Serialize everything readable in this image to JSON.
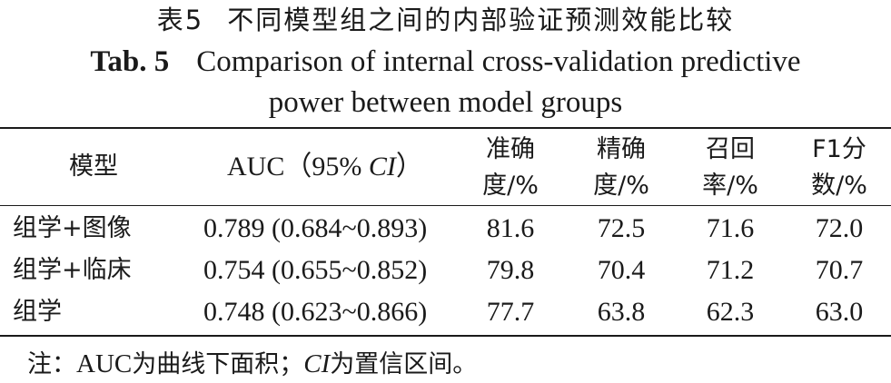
{
  "caption": {
    "cn_number": "表5",
    "cn_title": "不同模型组之间的内部验证预测效能比较",
    "en_number": "Tab. 5",
    "en_line1": "Comparison of internal cross-validation predictive",
    "en_line2": "power between model groups"
  },
  "headers": {
    "model": "模型",
    "auc_prefix": "AUC（95% ",
    "auc_ci": "CI",
    "auc_suffix": "）",
    "accuracy_l1": "准确",
    "accuracy_l2": "度/%",
    "precision_l1": "精确",
    "precision_l2": "度/%",
    "recall_l1": "召回",
    "recall_l2": "率/%",
    "f1_l1": "F1分",
    "f1_l2": "数/%"
  },
  "rows": [
    {
      "model": "组学+图像",
      "auc": "0.789 (0.684~0.893)",
      "accuracy": "81.6",
      "precision": "72.5",
      "recall": "71.6",
      "f1": "72.0"
    },
    {
      "model": "组学+临床",
      "auc": "0.754 (0.655~0.852)",
      "accuracy": "79.8",
      "precision": "70.4",
      "recall": "71.2",
      "f1": "70.7"
    },
    {
      "model": "组学",
      "auc": "0.748 (0.623~0.866)",
      "accuracy": "77.7",
      "precision": "63.8",
      "recall": "62.3",
      "f1": "63.0"
    }
  ],
  "note": {
    "prefix": "注：",
    "auc_abbr": "AUC",
    "auc_def": "为曲线下面积；",
    "ci_abbr": "CI",
    "ci_def": "为置信区间。"
  }
}
